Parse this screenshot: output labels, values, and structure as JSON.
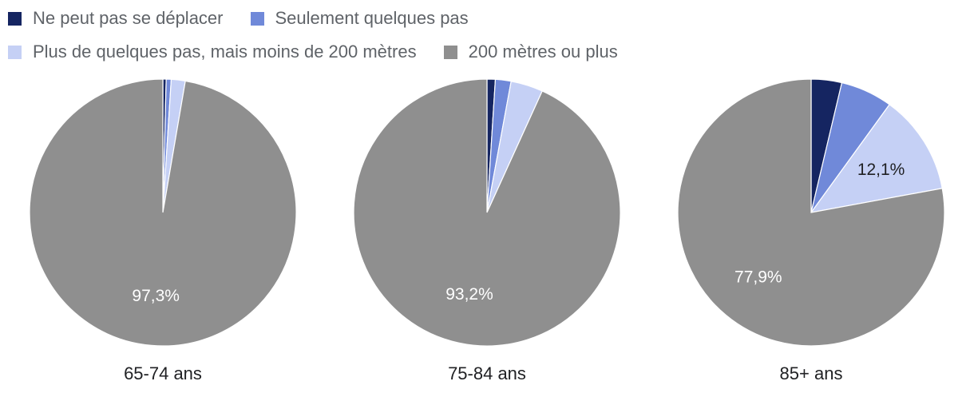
{
  "chart_data": {
    "type": "pie",
    "legend_position": "top",
    "series_names": [
      "Ne peut pas se déplacer",
      "Seulement quelques pas",
      "Plus de quelques pas, mais moins de 200 mètres",
      "200 mètres ou plus"
    ],
    "colors": [
      "#152561",
      "#7089d9",
      "#c5d0f5",
      "#8f8f8f"
    ],
    "pies": [
      {
        "category": "65-74 ans",
        "values": [
          0.4,
          0.6,
          1.7,
          97.3
        ],
        "labels": [
          "",
          "",
          "",
          "97,3%"
        ]
      },
      {
        "category": "75-84 ans",
        "values": [
          1.0,
          1.9,
          3.9,
          93.2
        ],
        "labels": [
          "",
          "",
          "",
          "93,2%"
        ]
      },
      {
        "category": "85+ ans",
        "values": [
          3.7,
          6.3,
          12.1,
          77.9
        ],
        "labels": [
          "",
          "",
          "12,1%",
          "77,9%"
        ]
      }
    ]
  }
}
